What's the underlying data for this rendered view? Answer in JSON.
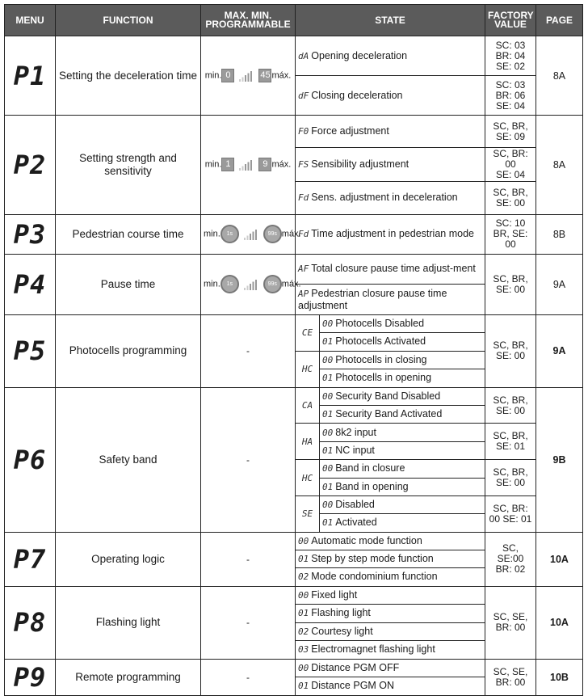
{
  "headers": {
    "menu": "MENU",
    "function": "FUNCTION",
    "programmable": "MAX. MIN. PROGRAMMABLE",
    "state": "STATE",
    "factory": "FACTORY VALUE",
    "page": "PAGE"
  },
  "min_label": "min.",
  "max_label": "máx.",
  "menus": [
    {
      "code": "P1",
      "function": "Setting the deceleration time",
      "programmable": {
        "type": "digits",
        "min": "0",
        "max": "45"
      },
      "page": "8A",
      "page_bold": false,
      "factory_groups": [
        {
          "value": "SC: 03\nBR: 04\nSE: 02",
          "subgroups": [
            {
              "states": [
                {
                  "code": "dA",
                  "text": "Opening deceleration"
                }
              ]
            }
          ]
        },
        {
          "value": "SC: 03\nBR: 06\nSE: 04",
          "subgroups": [
            {
              "states": [
                {
                  "code": "dF",
                  "text": "Closing deceleration"
                }
              ]
            }
          ]
        }
      ]
    },
    {
      "code": "P2",
      "function": "Setting strength and sensitivity",
      "programmable": {
        "type": "digits",
        "min": "1",
        "max": "9"
      },
      "page": "8A",
      "page_bold": false,
      "factory_groups": [
        {
          "value": "SC, BR,\nSE: 09",
          "subgroups": [
            {
              "states": [
                {
                  "code": "F0",
                  "text": "Force adjustment"
                }
              ]
            }
          ]
        },
        {
          "value": "SC, BR:\n00\nSE: 04",
          "subgroups": [
            {
              "states": [
                {
                  "code": "FS",
                  "text": "Sensibility adjustment"
                }
              ]
            }
          ]
        },
        {
          "value": "SC, BR,\nSE: 00",
          "subgroups": [
            {
              "states": [
                {
                  "code": "Fd",
                  "text": "Sens. adjustment in deceleration"
                }
              ]
            }
          ]
        }
      ]
    },
    {
      "code": "P3",
      "function": "Pedestrian course time",
      "programmable": {
        "type": "timer",
        "min": "1s",
        "max": "99s"
      },
      "page": "8B",
      "page_bold": false,
      "factory_groups": [
        {
          "value": "SC: 10\nBR, SE:\n00",
          "subgroups": [
            {
              "states": [
                {
                  "code": "Fd",
                  "text": "Time adjustment in pedestrian mode"
                }
              ]
            }
          ]
        }
      ]
    },
    {
      "code": "P4",
      "function": "Pause time",
      "programmable": {
        "type": "timer",
        "min": "1s",
        "max": "99s"
      },
      "page": "9A",
      "page_bold": false,
      "factory_groups": [
        {
          "value": "SC, BR,\nSE: 00",
          "subgroups": [
            {
              "states": [
                {
                  "code": "AF",
                  "text": "Total closure pause time adjust-ment"
                },
                {
                  "code": "AP",
                  "text": "Pedestrian closure pause time adjustment"
                }
              ]
            }
          ]
        }
      ]
    },
    {
      "code": "P5",
      "function": "Photocells programming",
      "programmable": {
        "type": "none",
        "text": "-"
      },
      "page": "9A",
      "page_bold": true,
      "factory_groups": [
        {
          "value": "SC, BR,\nSE: 00",
          "subgroups": [
            {
              "label": "CE",
              "states": [
                {
                  "code": "00",
                  "text": "Photocells Disabled"
                },
                {
                  "code": "01",
                  "text": "Photocells Activated"
                }
              ]
            },
            {
              "label": "HC",
              "states": [
                {
                  "code": "00",
                  "text": "Photocells in closing"
                },
                {
                  "code": "01",
                  "text": "Photocells in opening"
                }
              ]
            }
          ]
        }
      ]
    },
    {
      "code": "P6",
      "function": "Safety band",
      "programmable": {
        "type": "none",
        "text": "-"
      },
      "page": "9B",
      "page_bold": true,
      "factory_groups": [
        {
          "value": "SC, BR,\nSE: 00",
          "subgroups": [
            {
              "label": "CA",
              "states": [
                {
                  "code": "00",
                  "text": "Security Band Disabled"
                },
                {
                  "code": "01",
                  "text": "Security Band Activated"
                }
              ]
            }
          ]
        },
        {
          "value": "SC, BR,\nSE: 01",
          "subgroups": [
            {
              "label": "HA",
              "states": [
                {
                  "code": "00",
                  "text": "8k2 input"
                },
                {
                  "code": "01",
                  "text": "NC input"
                }
              ]
            }
          ]
        },
        {
          "value": "SC, BR,\nSE: 00",
          "subgroups": [
            {
              "label": "HC",
              "states": [
                {
                  "code": "00",
                  "text": "Band in closure"
                },
                {
                  "code": "01",
                  "text": "Band in opening"
                }
              ]
            }
          ]
        },
        {
          "value": "SC, BR:\n00 SE: 01",
          "subgroups": [
            {
              "label": "SE",
              "states": [
                {
                  "code": "00",
                  "text": "Disabled"
                },
                {
                  "code": "01",
                  "text": "Activated"
                }
              ]
            }
          ]
        }
      ]
    },
    {
      "code": "P7",
      "function": "Operating logic",
      "programmable": {
        "type": "none",
        "text": "-"
      },
      "page": "10A",
      "page_bold": true,
      "factory_groups": [
        {
          "value": "SC, SE:00\nBR: 02",
          "subgroups": [
            {
              "states": [
                {
                  "code": "00",
                  "text": "Automatic mode function"
                },
                {
                  "code": "01",
                  "text": "Step by step mode function"
                },
                {
                  "code": "02",
                  "text": "Mode condominium function"
                }
              ]
            }
          ]
        }
      ]
    },
    {
      "code": "P8",
      "function": "Flashing light",
      "programmable": {
        "type": "none",
        "text": "-"
      },
      "page": "10A",
      "page_bold": true,
      "factory_groups": [
        {
          "value": "SC, SE,\nBR: 00",
          "subgroups": [
            {
              "states": [
                {
                  "code": "00",
                  "text": "Fixed light"
                },
                {
                  "code": "01",
                  "text": "Flashing light"
                },
                {
                  "code": "02",
                  "text": "Courtesy light"
                },
                {
                  "code": "03",
                  "text": "Electromagnet flashing light"
                }
              ]
            }
          ]
        }
      ]
    },
    {
      "code": "P9",
      "function": "Remote programming",
      "programmable": {
        "type": "none",
        "text": "-"
      },
      "page": "10B",
      "page_bold": true,
      "factory_groups": [
        {
          "value": "SC, SE,\nBR: 00",
          "subgroups": [
            {
              "states": [
                {
                  "code": "00",
                  "text": "Distance PGM OFF"
                },
                {
                  "code": "01",
                  "text": "Distance PGM ON"
                }
              ]
            }
          ]
        }
      ]
    }
  ]
}
